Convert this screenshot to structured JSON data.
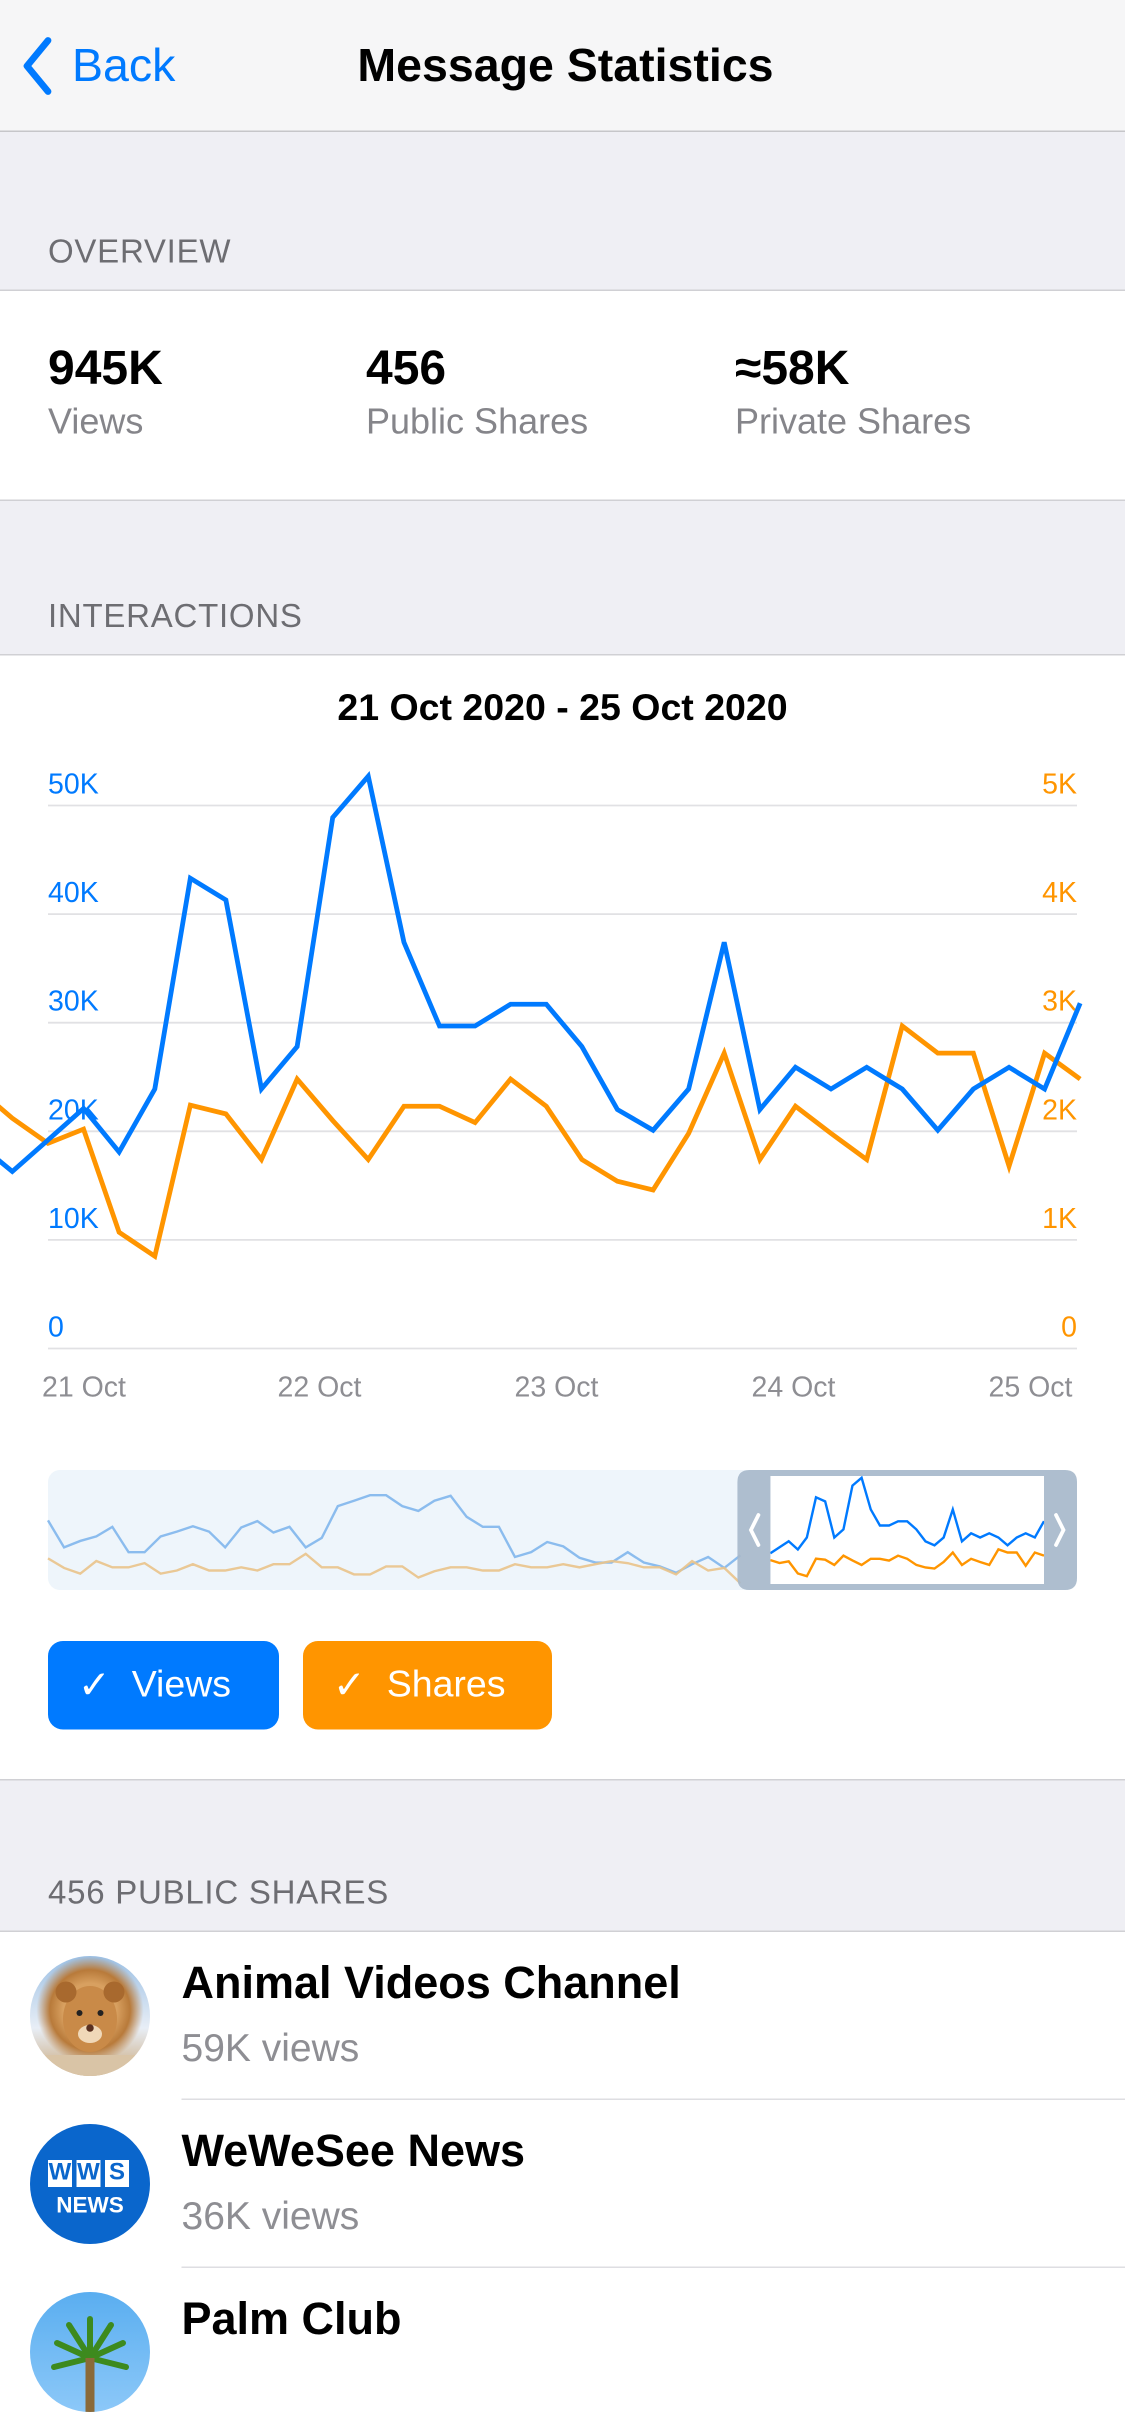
{
  "nav": {
    "back_label": "Back",
    "title": "Message Statistics"
  },
  "overview": {
    "header": "OVERVIEW",
    "stats": [
      {
        "value": "945K",
        "label": "Views"
      },
      {
        "value": "456",
        "label": "Public Shares"
      },
      {
        "value": "≈58K",
        "label": "Private Shares"
      }
    ]
  },
  "interactions": {
    "header": "INTERACTIONS",
    "toggles": [
      {
        "label": "Views",
        "checked": true,
        "color": "#007aff"
      },
      {
        "label": "Shares",
        "checked": true,
        "color": "#ff9500"
      }
    ]
  },
  "chart_data": {
    "type": "line",
    "title": "21 Oct 2020 - 25 Oct 2020",
    "x_tick_labels": [
      "21 Oct",
      "22 Oct",
      "23 Oct",
      "24 Oct",
      "25 Oct"
    ],
    "y_left": {
      "ticks": [
        "0",
        "10K",
        "20K",
        "30K",
        "40K",
        "50K"
      ],
      "range": [
        0,
        50000
      ],
      "color": "#007aff"
    },
    "y_right": {
      "ticks": [
        "0",
        "1K",
        "2K",
        "3K",
        "4K",
        "5K"
      ],
      "range": [
        0,
        5000
      ],
      "color": "#ff9500"
    },
    "grid": true,
    "series": [
      {
        "name": "Views",
        "axis": "left",
        "color": "#007aff",
        "values": [
          19000,
          16300,
          19200,
          22100,
          18100,
          23900,
          43300,
          41300,
          23900,
          27800,
          48900,
          52700,
          37400,
          29700,
          29700,
          31700,
          31700,
          27800,
          22000,
          20100,
          23900,
          37400,
          22000,
          25900,
          23900,
          25900,
          23900,
          20100,
          23900,
          25900,
          23900,
          31800
        ]
      },
      {
        "name": "Shares",
        "axis": "right",
        "color": "#ff9500",
        "values": [
          2400,
          2120,
          1890,
          2020,
          1070,
          850,
          2240,
          2160,
          1740,
          2480,
          2100,
          1740,
          2230,
          2230,
          2080,
          2480,
          2230,
          1740,
          1540,
          1460,
          1980,
          2720,
          1740,
          2230,
          1980,
          1740,
          2970,
          2720,
          2720,
          1680,
          2720,
          2480
        ]
      }
    ],
    "overview": {
      "selected_fraction": [
        0.67,
        1.0
      ],
      "views": [
        32100,
        19100,
        22200,
        24400,
        29000,
        16800,
        16800,
        24400,
        26700,
        29300,
        26700,
        19100,
        28700,
        31800,
        26300,
        29000,
        19100,
        23700,
        39000,
        41600,
        44300,
        44300,
        39000,
        36700,
        41600,
        44000,
        33900,
        29000,
        29000,
        14500,
        16800,
        21700,
        19600,
        14100,
        11800,
        11800,
        16800,
        11800,
        9900,
        6900,
        11000,
        14500,
        9200,
        15300
      ],
      "shares": [
        2260,
        1500,
        1050,
        2050,
        1550,
        1550,
        1880,
        1050,
        1300,
        1800,
        1300,
        1300,
        1550,
        1300,
        1800,
        1800,
        2620,
        1550,
        1550,
        1000,
        1000,
        1620,
        1620,
        750,
        1240,
        1550,
        1550,
        1300,
        1300,
        1800,
        1550,
        1550,
        1800,
        1550,
        1800,
        2050,
        1880,
        1550,
        1550,
        1000,
        2050,
        1300,
        1500,
        300
      ]
    }
  },
  "public_shares": {
    "header": "456 PUBLIC SHARES",
    "items": [
      {
        "name": "Animal Videos Channel",
        "views": "59K views",
        "avatar": "lion-cub-photo"
      },
      {
        "name": "WeWeSee News",
        "views": "36K views",
        "avatar": "wws-news-logo",
        "logo_text": [
          "W",
          "W",
          "S",
          "NEWS"
        ]
      },
      {
        "name": "Palm Club",
        "views": "",
        "avatar": "palm-tree-photo"
      }
    ]
  }
}
